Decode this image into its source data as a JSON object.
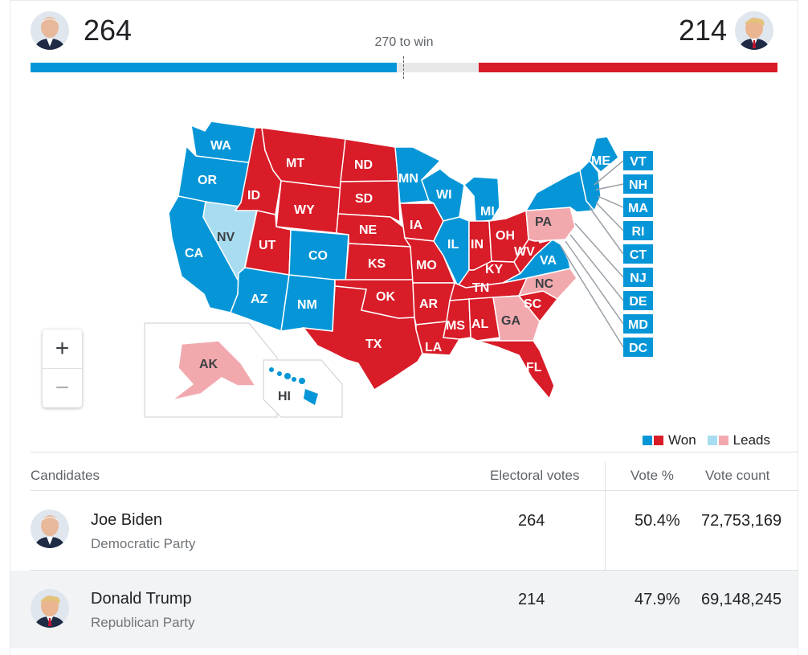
{
  "header": {
    "left_count": "264",
    "right_count": "214",
    "to_win_label": "270 to win",
    "dem_fraction": 0.49,
    "rep_fraction": 0.4
  },
  "colors": {
    "dem_won": "#0696d7",
    "rep_won": "#d81c28",
    "dem_leads": "#a8dcf0",
    "rep_leads": "#f2a9ae",
    "neutral_bar": "#e8e8e8"
  },
  "map": {
    "states": {
      "WA": "dem",
      "OR": "dem",
      "CA": "dem",
      "NV": "dem-leads",
      "ID": "rep",
      "MT": "rep",
      "WY": "rep",
      "UT": "rep",
      "CO": "dem",
      "AZ": "dem",
      "NM": "dem",
      "ND": "rep",
      "SD": "rep",
      "NE": "rep",
      "KS": "rep",
      "OK": "rep",
      "TX": "rep",
      "MN": "dem",
      "IA": "rep",
      "MO": "rep",
      "AR": "rep",
      "LA": "rep",
      "WI": "dem",
      "IL": "dem",
      "MI": "dem",
      "IN": "rep",
      "OH": "rep",
      "KY": "rep",
      "TN": "rep",
      "MS": "rep",
      "AL": "rep",
      "GA": "rep-leads",
      "FL": "rep",
      "SC": "rep",
      "NC": "rep-leads",
      "VA": "dem",
      "WV": "rep",
      "PA": "rep-leads",
      "NY": "dem",
      "ME": "dem",
      "AK": "rep-leads",
      "HI": "dem"
    },
    "small_states": [
      "VT",
      "NH",
      "MA",
      "RI",
      "CT",
      "NJ",
      "DE",
      "MD",
      "DC"
    ]
  },
  "zoom": {
    "in": "+",
    "out": "−"
  },
  "legend": {
    "won": "Won",
    "leads": "Leads"
  },
  "table": {
    "headers": {
      "candidates": "Candidates",
      "electoral": "Electoral votes",
      "vote_pct": "Vote %",
      "vote_count": "Vote count"
    },
    "rows": [
      {
        "name": "Joe Biden",
        "party": "Democratic Party",
        "electoral": "264",
        "pct": "50.4%",
        "count": "72,753,169"
      },
      {
        "name": "Donald Trump",
        "party": "Republican Party",
        "electoral": "214",
        "pct": "47.9%",
        "count": "69,148,245"
      }
    ]
  }
}
